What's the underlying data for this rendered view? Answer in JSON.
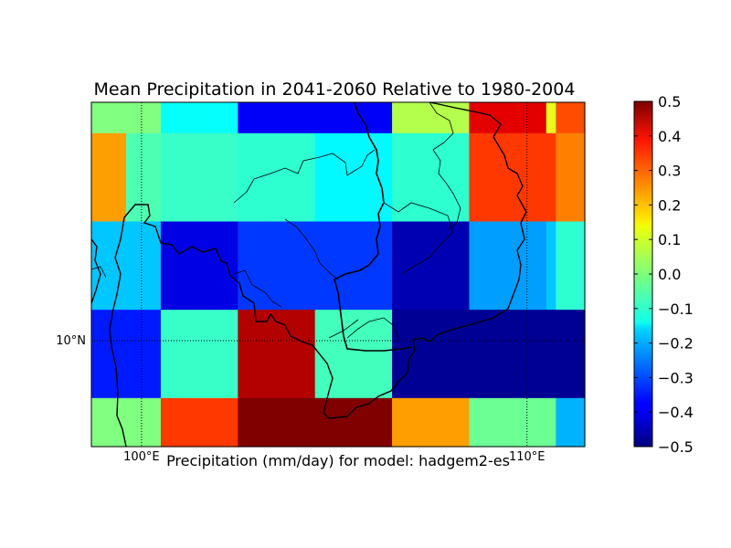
{
  "chart_data": {
    "type": "heatmap",
    "title": "Mean Precipitation in 2041-2060 Relative to 1980-2004",
    "xlabel": "Precipitation (mm/day) for model: hadgem2-es",
    "ylabel": "",
    "colormap": "jet",
    "value_range": [
      -0.5,
      0.5
    ],
    "colorbar_ticks": [
      "0.5",
      "0.4",
      "0.3",
      "0.2",
      "0.1",
      "0.0",
      "−0.1",
      "−0.2",
      "−0.3",
      "−0.4",
      "−0.5"
    ],
    "colorbar_tick_values": [
      0.5,
      0.4,
      0.3,
      0.2,
      0.1,
      0.0,
      -0.1,
      -0.2,
      -0.3,
      -0.4,
      -0.5
    ],
    "lon_range": [
      98.7,
      111.5
    ],
    "lat_range": [
      7.6,
      15.4
    ],
    "lon_edges": [
      98.7,
      99.6,
      100.5,
      102.5,
      104.5,
      106.5,
      108.5,
      110.5,
      110.75,
      111.5
    ],
    "lat_edges": [
      15.4,
      14.7,
      12.7,
      10.7,
      8.7,
      7.6
    ],
    "grid_values": [
      [
        0.0,
        0.0,
        -0.12,
        -0.38,
        -0.38,
        0.05,
        0.4,
        0.1,
        0.3
      ],
      [
        0.22,
        -0.05,
        -0.07,
        -0.08,
        -0.13,
        -0.08,
        0.32,
        0.32,
        0.25
      ],
      [
        -0.18,
        -0.18,
        -0.4,
        -0.32,
        -0.32,
        -0.45,
        -0.22,
        -0.18,
        -0.08
      ],
      [
        -0.35,
        -0.35,
        -0.07,
        0.45,
        -0.06,
        -0.48,
        -0.48,
        -0.48,
        -0.48
      ],
      [
        0.0,
        0.0,
        0.32,
        0.5,
        0.5,
        0.22,
        -0.02,
        -0.02,
        -0.2
      ]
    ],
    "meridians": [
      {
        "lon": 100,
        "label": "100°E"
      },
      {
        "lon": 110,
        "label": "110°E"
      }
    ],
    "parallels": [
      {
        "lat": 10,
        "label": "10°N"
      }
    ],
    "colors": {
      "coastline": "#000000",
      "border": "#000000",
      "graticule": "#000000"
    }
  }
}
